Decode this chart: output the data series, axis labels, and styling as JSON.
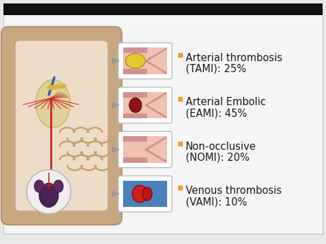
{
  "background_color": "#e8e8e8",
  "slide_bg": "#f5f5f5",
  "bullet_color": "#f0a030",
  "text_color": "#1a1a1a",
  "bullet_items": [
    [
      "Arterial thrombosis",
      "(TAMI): 25%"
    ],
    [
      "Arterial Embolic",
      "(EAMI): 45%"
    ],
    [
      "Non-occlusive",
      "(NOMI): 20%"
    ],
    [
      "Venous thrombosis",
      "(VAMI): 10%"
    ]
  ],
  "vessel_types": [
    "arterial_thrombosis",
    "arterial_embolic",
    "non_occlusive",
    "venous"
  ],
  "vessel_bg": [
    "#f0c0b0",
    "#f0c0b0",
    "#f0c0b0",
    "#4a80bb"
  ],
  "clot_colors": [
    "#e8c830",
    "#8b1515",
    null,
    "#cc2020"
  ],
  "wall_color": "#c89090",
  "arrow_color": "#999999",
  "font_size_main": 10.5,
  "font_size_sub": 10.5,
  "top_bar_color": "#111111",
  "box_edge_color": "#bbbbbb",
  "gut_outer": "#c8a882",
  "gut_inner_bg": "#ecdcc8",
  "gut_vessel_red": "#cc2222",
  "gut_vessel_blue": "#3355bb",
  "gut_fat_yellow": "#d4b840",
  "gut_intestine": "#c8a070"
}
